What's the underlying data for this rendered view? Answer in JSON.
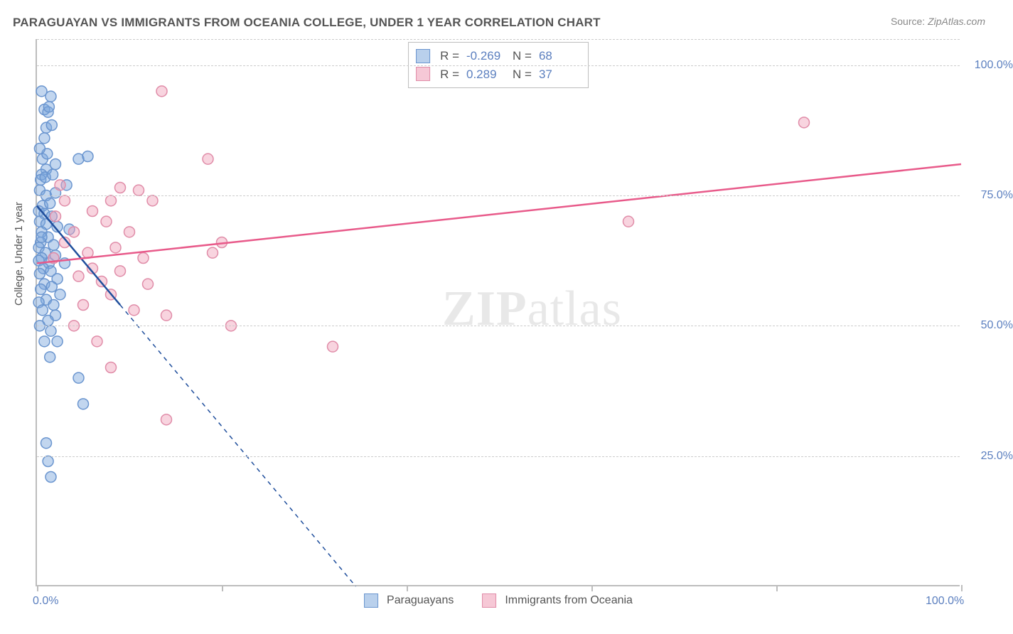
{
  "title": "PARAGUAYAN VS IMMIGRANTS FROM OCEANIA COLLEGE, UNDER 1 YEAR CORRELATION CHART",
  "source_label": "Source:",
  "source_value": "ZipAtlas.com",
  "y_axis_label": "College, Under 1 year",
  "watermark_bold": "ZIP",
  "watermark_light": "atlas",
  "chart": {
    "type": "scatter",
    "xlim": [
      0,
      100
    ],
    "ylim": [
      0,
      105
    ],
    "x_ticks": [
      0,
      20,
      40,
      60,
      80,
      100
    ],
    "y_gridlines": [
      25,
      50,
      75,
      100,
      105
    ],
    "y_tick_labels": [
      {
        "pos": 25,
        "text": "25.0%"
      },
      {
        "pos": 50,
        "text": "50.0%"
      },
      {
        "pos": 75,
        "text": "75.0%"
      },
      {
        "pos": 100,
        "text": "100.0%"
      }
    ],
    "x_tick_labels": [
      {
        "pos": 0,
        "text": "0.0%"
      },
      {
        "pos": 100,
        "text": "100.0%"
      }
    ],
    "background_color": "#ffffff",
    "grid_color": "#cccccc",
    "axis_color": "#bdbdbd",
    "marker_radius": 7.5,
    "marker_stroke_width": 1.5,
    "trend_line_width": 2.5,
    "label_color": "#5b7fbf"
  },
  "series": [
    {
      "name": "Paraguayans",
      "legend_label": "Paraguayans",
      "R_label": "R =",
      "R_value": "-0.269",
      "N_label": "N =",
      "N_value": "68",
      "fill": "rgba(120,165,220,0.45)",
      "stroke": "#6a95cf",
      "swatch_fill": "#b9d0ec",
      "swatch_stroke": "#6a95cf",
      "trend_color": "#1f4e9c",
      "trend_solid": {
        "x1": 0,
        "y1": 73,
        "x2": 9,
        "y2": 54
      },
      "trend_dashed": {
        "x1": 9,
        "y1": 54,
        "x2": 34.5,
        "y2": 0
      },
      "points": [
        [
          0.5,
          95
        ],
        [
          1.5,
          94
        ],
        [
          0.8,
          91.5
        ],
        [
          1.2,
          91
        ],
        [
          1.0,
          88
        ],
        [
          1.6,
          88.5
        ],
        [
          4.5,
          82
        ],
        [
          5.5,
          82.5
        ],
        [
          3.2,
          77
        ],
        [
          1.0,
          80
        ],
        [
          0.5,
          79
        ],
        [
          0.3,
          76
        ],
        [
          1.0,
          75
        ],
        [
          2.0,
          75.5
        ],
        [
          0.6,
          73
        ],
        [
          1.4,
          73.5
        ],
        [
          0.2,
          72
        ],
        [
          0.8,
          71.5
        ],
        [
          1.6,
          71
        ],
        [
          0.3,
          70
        ],
        [
          1.0,
          69.5
        ],
        [
          2.2,
          69
        ],
        [
          0.5,
          68
        ],
        [
          3.5,
          68.5
        ],
        [
          1.2,
          67
        ],
        [
          0.4,
          66
        ],
        [
          1.8,
          65.5
        ],
        [
          0.2,
          65
        ],
        [
          0.9,
          64
        ],
        [
          2.0,
          63.5
        ],
        [
          0.5,
          63
        ],
        [
          1.3,
          62
        ],
        [
          0.2,
          62.5
        ],
        [
          3.0,
          62
        ],
        [
          0.7,
          61
        ],
        [
          1.5,
          60.5
        ],
        [
          0.3,
          60
        ],
        [
          2.2,
          59
        ],
        [
          0.8,
          58
        ],
        [
          1.6,
          57.5
        ],
        [
          0.4,
          57
        ],
        [
          2.5,
          56
        ],
        [
          1.0,
          55
        ],
        [
          0.2,
          54.5
        ],
        [
          1.8,
          54
        ],
        [
          0.6,
          53
        ],
        [
          2.0,
          52
        ],
        [
          1.2,
          51
        ],
        [
          0.3,
          50
        ],
        [
          1.5,
          49
        ],
        [
          2.2,
          47
        ],
        [
          0.8,
          47
        ],
        [
          1.4,
          44
        ],
        [
          4.5,
          40
        ],
        [
          5.0,
          35
        ],
        [
          1.0,
          27.5
        ],
        [
          1.2,
          24
        ],
        [
          1.5,
          21
        ],
        [
          0.4,
          78
        ],
        [
          0.9,
          78.5
        ],
        [
          1.7,
          79
        ],
        [
          0.6,
          82
        ],
        [
          1.1,
          83
        ],
        [
          0.3,
          84
        ],
        [
          2.0,
          81
        ],
        [
          0.8,
          86
        ],
        [
          1.3,
          92
        ],
        [
          0.5,
          67
        ]
      ]
    },
    {
      "name": "Immigrants from Oceania",
      "legend_label": "Immigrants from Oceania",
      "R_label": "R =",
      "R_value": "0.289",
      "N_label": "N =",
      "N_value": "37",
      "fill": "rgba(240,160,185,0.45)",
      "stroke": "#e08ca8",
      "swatch_fill": "#f6c8d6",
      "swatch_stroke": "#e08ca8",
      "trend_color": "#e85a8a",
      "trend_solid": {
        "x1": 0,
        "y1": 62,
        "x2": 100,
        "y2": 81
      },
      "trend_dashed": null,
      "points": [
        [
          13.5,
          95
        ],
        [
          18.5,
          82
        ],
        [
          83,
          89
        ],
        [
          64,
          70
        ],
        [
          32,
          46
        ],
        [
          8,
          74
        ],
        [
          9,
          76.5
        ],
        [
          11,
          76
        ],
        [
          12.5,
          74
        ],
        [
          6,
          72
        ],
        [
          7.5,
          70
        ],
        [
          4,
          68
        ],
        [
          10,
          68
        ],
        [
          3,
          66
        ],
        [
          8.5,
          65
        ],
        [
          5.5,
          64
        ],
        [
          11.5,
          63
        ],
        [
          6,
          61
        ],
        [
          9,
          60.5
        ],
        [
          4.5,
          59.5
        ],
        [
          7,
          58.5
        ],
        [
          12,
          58
        ],
        [
          8,
          56
        ],
        [
          5,
          54
        ],
        [
          10.5,
          53
        ],
        [
          4,
          50
        ],
        [
          6.5,
          47
        ],
        [
          14,
          52
        ],
        [
          8,
          42
        ],
        [
          14,
          32
        ],
        [
          19,
          64
        ],
        [
          20,
          66
        ],
        [
          21,
          50
        ],
        [
          3,
          74
        ],
        [
          2,
          71
        ],
        [
          2.5,
          77
        ],
        [
          1.8,
          63
        ]
      ]
    }
  ]
}
